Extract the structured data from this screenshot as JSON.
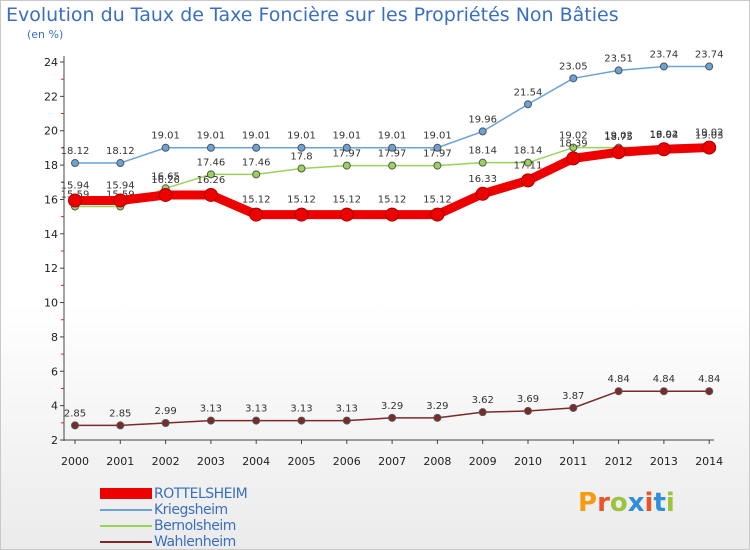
{
  "title": "Evolution du Taux de Taxe Foncière sur les Propriétés Non Bâties",
  "subtitle": "(en %)",
  "logo": {
    "letters": [
      "P",
      "r",
      "o",
      "x",
      "i",
      "t",
      "i"
    ],
    "colors": [
      "#f39c12",
      "#e8542c",
      "#9bc33c",
      "#2f8fd8",
      "#e8542c",
      "#2f8fd8",
      "#9bc33c"
    ]
  },
  "chart_data": {
    "type": "line",
    "categories": [
      "2000",
      "2001",
      "2002",
      "2003",
      "2004",
      "2005",
      "2006",
      "2007",
      "2008",
      "2009",
      "2010",
      "2011",
      "2012",
      "2013",
      "2014"
    ],
    "ylim": [
      2,
      24
    ],
    "yticks": [
      "2",
      "4",
      "6",
      "8",
      "10",
      "12",
      "14",
      "16",
      "18",
      "20",
      "22",
      "24"
    ],
    "grid": false,
    "legend": "bottom-left",
    "series": [
      {
        "name": "Kriegsheim",
        "color": "#6aa3d8",
        "values": [
          18.12,
          18.12,
          19.01,
          19.01,
          19.01,
          19.01,
          19.01,
          19.01,
          19.01,
          19.96,
          21.54,
          23.05,
          23.51,
          23.74,
          23.74
        ],
        "labels": [
          "18.12",
          "18.12",
          "19.01",
          "19.01",
          "19.01",
          "19.01",
          "19.01",
          "19.01",
          "19.01",
          "19.96",
          "21.54",
          "23.05",
          "23.51",
          "23.74",
          "23.74"
        ]
      },
      {
        "name": "Bernolsheim",
        "color": "#9bd35a",
        "values": [
          15.59,
          15.59,
          16.65,
          17.46,
          17.46,
          17.8,
          17.97,
          17.97,
          17.97,
          18.14,
          18.14,
          19.02,
          19.02,
          19.04,
          19.03
        ],
        "labels": [
          "15.59",
          "15.59",
          "16.65",
          "17.46",
          "17.46",
          "17.8",
          "17.97",
          "17.97",
          "17.97",
          "18.14",
          "18.14",
          "19.02",
          "19.02",
          "19.04",
          "19.03"
        ]
      },
      {
        "name": "ROTTELSHEIM",
        "color": "#ee0000",
        "values": [
          15.94,
          15.94,
          16.26,
          16.26,
          15.12,
          15.12,
          15.12,
          15.12,
          15.12,
          16.33,
          17.11,
          18.39,
          18.75,
          18.92,
          19.02
        ],
        "labels": [
          "15.94",
          "15.94",
          "16.26",
          "16.26",
          "15.12",
          "15.12",
          "15.12",
          "15.12",
          "15.12",
          "16.33",
          "17.11",
          "18.39",
          "18.75",
          "18.92",
          "19.02"
        ]
      },
      {
        "name": "Wahlenheim",
        "color": "#7a2a2a",
        "values": [
          2.85,
          2.85,
          2.99,
          3.13,
          3.13,
          3.13,
          3.13,
          3.29,
          3.29,
          3.62,
          3.69,
          3.87,
          4.84,
          4.84,
          4.84
        ],
        "labels": [
          "2.85",
          "2.85",
          "2.99",
          "3.13",
          "3.13",
          "3.13",
          "3.13",
          "3.29",
          "3.29",
          "3.62",
          "3.69",
          "3.87",
          "4.84",
          "4.84",
          "4.84"
        ]
      }
    ],
    "legend_order": [
      "ROTTELSHEIM",
      "Kriegsheim",
      "Bernolsheim",
      "Wahlenheim"
    ]
  }
}
